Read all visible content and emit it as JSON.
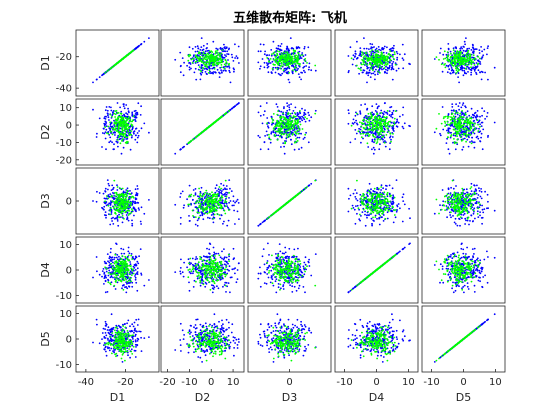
{
  "chart_data": {
    "type": "scatter",
    "title": "五维散布矩阵: 飞机",
    "dimensions": [
      "D1",
      "D2",
      "D3",
      "D4",
      "D5"
    ],
    "ranges": [
      [
        -45,
        -3
      ],
      [
        -23,
        15
      ],
      [
        -15,
        15
      ],
      [
        -13,
        13
      ],
      [
        -13,
        13
      ]
    ],
    "ticks": [
      {
        "values": [
          -40,
          -20
        ],
        "labels": [
          "-40",
          "-20"
        ]
      },
      {
        "values": [
          -20,
          -10,
          0,
          10
        ],
        "labels": [
          "-20",
          "-10",
          "0",
          "10"
        ]
      },
      {
        "values": [
          0
        ],
        "labels": [
          "0"
        ]
      },
      {
        "values": [
          -10,
          0,
          10
        ],
        "labels": [
          "-10",
          "0",
          "10"
        ]
      },
      {
        "values": [
          -10,
          0,
          10
        ],
        "labels": [
          "-10",
          "0",
          "10"
        ]
      }
    ],
    "y_ticks_row1": {
      "values": [
        -40,
        -20
      ],
      "labels": [
        "-40",
        "-20"
      ]
    },
    "y_ticks_row2": {
      "values": [
        -20,
        -10,
        0,
        10
      ],
      "labels": [
        "-20",
        "-10",
        "0",
        "10"
      ]
    },
    "groups": [
      {
        "color": "#0000ff",
        "center": [
          -22,
          0,
          -1,
          0,
          0
        ],
        "spread": [
          5,
          6,
          4.5,
          3.5,
          3.5
        ]
      },
      {
        "color": "#00ff00",
        "center": [
          -22,
          0,
          -1,
          0,
          -1
        ],
        "spread": [
          3,
          4,
          3,
          2.5,
          2.5
        ]
      }
    ],
    "grid": false,
    "legend": "none"
  }
}
